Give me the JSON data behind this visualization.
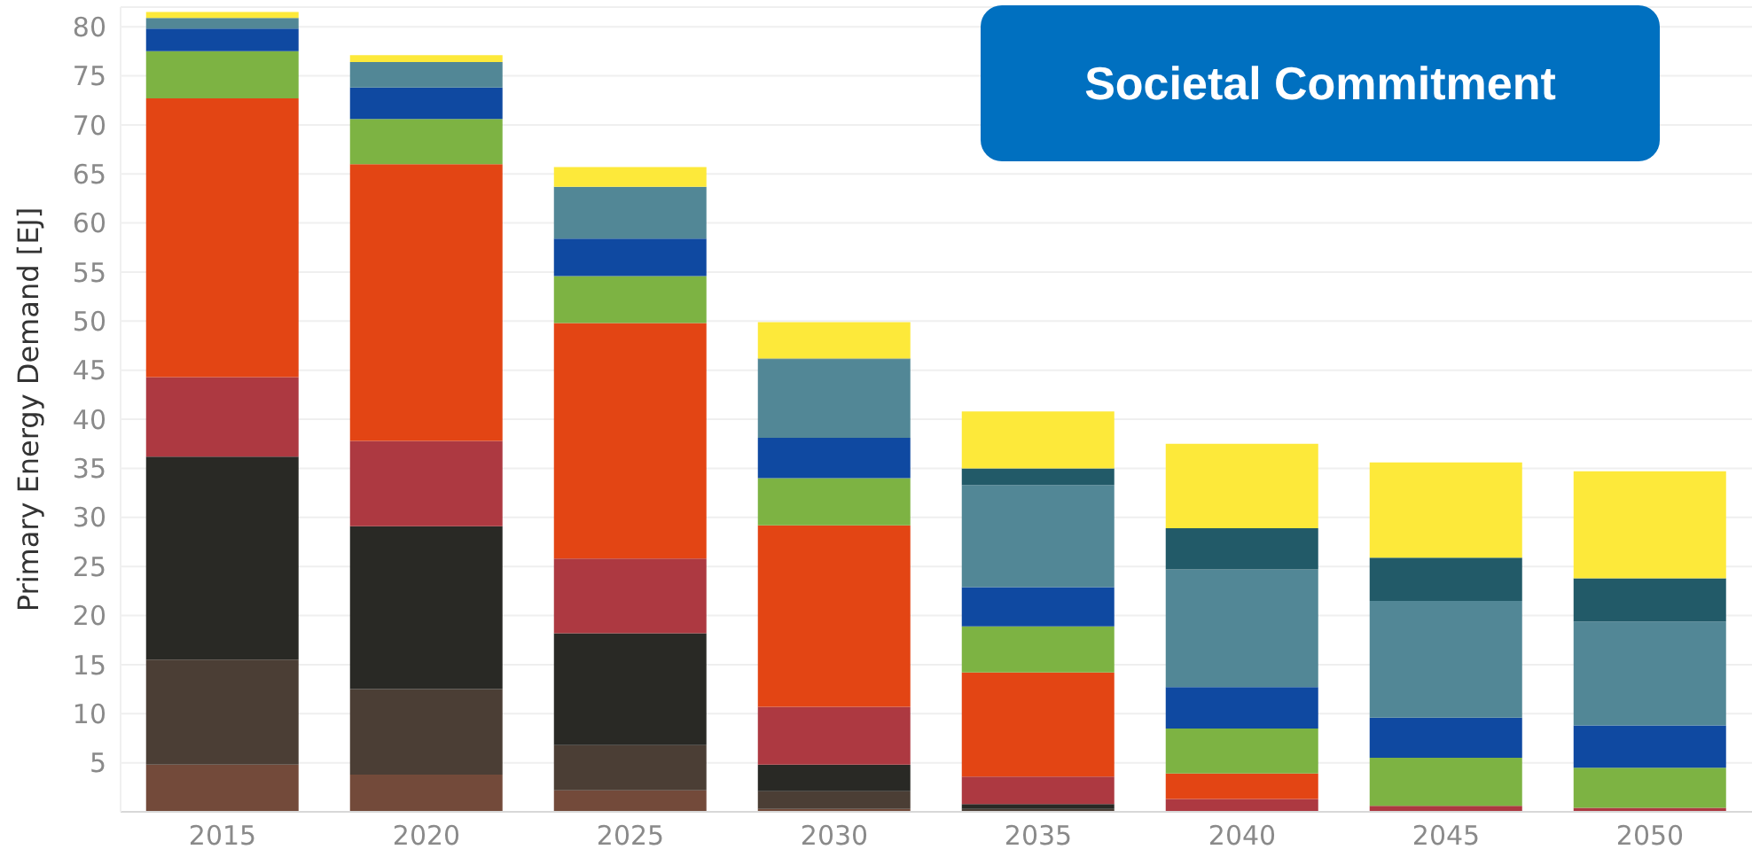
{
  "chart_data": {
    "type": "bar",
    "title": "Societal Commitment",
    "ylabel": "Primary Energy Demand [EJ]",
    "categories": [
      "2015",
      "2020",
      "2025",
      "2030",
      "2035",
      "2040",
      "2045",
      "2050"
    ],
    "stacked": true,
    "series": [
      {
        "color": "#734a3a",
        "values": [
          4.8,
          3.8,
          2.2,
          0.3,
          null,
          0,
          0,
          0
        ]
      },
      {
        "color": "#4b3e35",
        "values": [
          10.7,
          8.7,
          4.6,
          1.8,
          0.3,
          0,
          0,
          0
        ]
      },
      {
        "color": "#292925",
        "values": [
          20.7,
          16.6,
          11.4,
          2.7,
          0.5,
          0,
          0,
          0
        ]
      },
      {
        "color": "#ad3941",
        "values": [
          8.1,
          8.7,
          7.6,
          5.9,
          2.8,
          1.3,
          0.6,
          0.4
        ]
      },
      {
        "color": "#e34514",
        "values": [
          28.4,
          28.2,
          24.0,
          18.5,
          10.6,
          2.6,
          0,
          0
        ]
      },
      {
        "color": "#7db343",
        "values": [
          4.8,
          4.6,
          4.8,
          4.8,
          4.7,
          4.6,
          4.9,
          4.1
        ]
      },
      {
        "color": "#0f49a1",
        "values": [
          2.3,
          3.2,
          3.8,
          4.1,
          4.0,
          4.2,
          4.1,
          4.3
        ]
      },
      {
        "color": "#528796",
        "values": [
          1.1,
          2.6,
          5.3,
          8.0,
          10.4,
          12.0,
          11.9,
          10.6
        ]
      },
      {
        "color": "#225a68",
        "values": [
          0,
          0,
          0,
          0.1,
          1.7,
          4.2,
          4.4,
          4.4
        ]
      },
      {
        "color": "#fde93a",
        "values": [
          0.6,
          0.7,
          2.0,
          3.7,
          5.8,
          8.6,
          9.7,
          10.9
        ]
      }
    ],
    "ylim": [
      0,
      82
    ],
    "yticks": [
      5,
      10,
      15,
      20,
      25,
      30,
      35,
      40,
      45,
      50,
      55,
      60,
      65,
      70,
      75,
      80
    ],
    "grid": "y",
    "legend": false
  }
}
